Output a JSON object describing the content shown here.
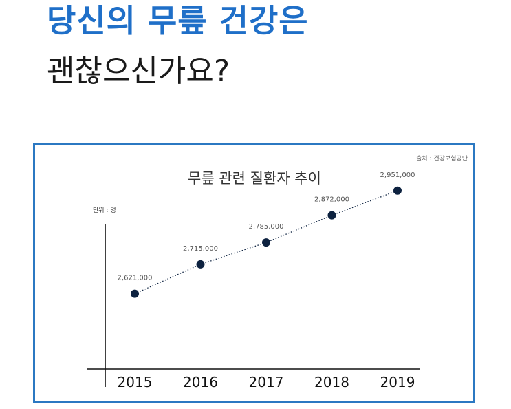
{
  "headline": {
    "line1": "당신의 무릎 건강은",
    "line2": "괜찮으신가요?"
  },
  "colors": {
    "headline_blue": "#1f6fc8",
    "frame_blue": "#2b78c2",
    "point_navy": "#0d2240"
  },
  "chart_data": {
    "type": "line",
    "title": "무릎 관련 질환자 추이",
    "source": "출처 : 건강보험공단",
    "unit": "단위 : 명",
    "x": [
      "2015",
      "2016",
      "2017",
      "2018",
      "2019"
    ],
    "series": [
      {
        "values": [
          2621000,
          2715000,
          2785000,
          2872000,
          2951000
        ],
        "labels": [
          "2,621,000",
          "2,715,000",
          "2,785,000",
          "2,872,000",
          "2,951,000"
        ]
      }
    ],
    "ylim": [
      2380000,
      3010000
    ],
    "line_style": "dotted",
    "grid": false,
    "legend": "none"
  }
}
